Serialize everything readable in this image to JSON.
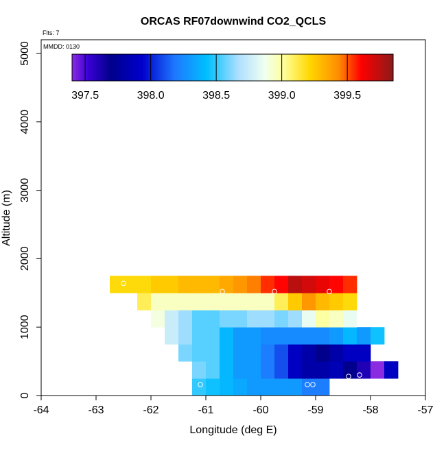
{
  "chart_data": {
    "type": "heatmap",
    "title": "ORCAS RF07downwind CO2_QCLS",
    "top_left_note": "Flts: 7",
    "date_note": "MMDD: 0130",
    "xlabel": "Longitude (deg E)",
    "ylabel": "Altitude (m)",
    "xlim": [
      -64,
      -57
    ],
    "ylim": [
      0,
      5200
    ],
    "x_ticks": [
      -64,
      -63,
      -62,
      -61,
      -60,
      -59,
      -58,
      -57
    ],
    "x_tick_labels": [
      "-64",
      "-63",
      "-62",
      "-61",
      "-60",
      "-59",
      "-58",
      "-57"
    ],
    "y_ticks": [
      0,
      1000,
      2000,
      3000,
      4000,
      5000
    ],
    "y_tick_labels": [
      "0",
      "1000",
      "2000",
      "3000",
      "4000",
      "5000"
    ],
    "colorbar": {
      "min": 397.4,
      "max": 399.85,
      "ticks": [
        397.5,
        398.0,
        398.5,
        399.0,
        399.5
      ],
      "tick_labels": [
        "397.5",
        "398.0",
        "398.5",
        "399.0",
        "399.5"
      ]
    },
    "cell_width_deg": 0.25,
    "cell_height_m": 250,
    "rows": [
      {
        "y_bottom": 0,
        "x_start": -61.25,
        "values": [
          398.5,
          398.45,
          398.4,
          398.35,
          398.3,
          398.3,
          398.3,
          398.3,
          398.2,
          398.2
        ]
      },
      {
        "y_bottom": 250,
        "x_start": -61.25,
        "values": [
          398.6,
          398.55,
          398.4,
          398.3,
          398.3,
          398.2,
          398.1,
          397.9,
          397.8,
          397.8,
          397.85,
          397.7,
          397.6,
          397.4,
          397.9
        ]
      },
      {
        "y_bottom": 500,
        "x_start": -61.5,
        "values": [
          398.6,
          398.55,
          398.55,
          398.4,
          398.3,
          398.3,
          398.2,
          398.1,
          397.9,
          397.8,
          397.7,
          397.8,
          397.9,
          397.9
        ]
      },
      {
        "y_bottom": 750,
        "x_start": -61.75,
        "values": [
          398.75,
          398.65,
          398.55,
          398.55,
          398.4,
          398.3,
          398.3,
          398.25,
          398.25,
          398.25,
          398.25,
          398.25,
          398.3,
          398.4,
          398.3,
          398.45
        ]
      },
      {
        "y_bottom": 1000,
        "x_start": -62.0,
        "values": [
          398.9,
          398.75,
          398.65,
          398.55,
          398.55,
          398.6,
          398.6,
          398.65,
          398.65,
          398.6,
          398.65,
          398.85,
          399.0,
          398.95,
          398.85
        ]
      },
      {
        "y_bottom": 1250,
        "x_start": -62.25,
        "values": [
          399.1,
          398.95,
          398.95,
          398.95,
          398.95,
          398.95,
          398.95,
          398.95,
          398.95,
          398.95,
          399.1,
          399.25,
          399.4,
          399.3,
          399.25,
          399.2
        ]
      },
      {
        "y_bottom": 1500,
        "x_start": -62.75,
        "values": [
          399.2,
          399.2,
          399.2,
          399.25,
          399.25,
          399.3,
          399.3,
          399.3,
          399.35,
          399.4,
          399.45,
          399.55,
          399.6,
          399.75,
          399.7,
          399.65,
          399.6,
          399.55
        ]
      }
    ],
    "flight_points": [
      {
        "x": -62.5,
        "y": 1640
      },
      {
        "x": -60.7,
        "y": 1520
      },
      {
        "x": -59.75,
        "y": 1520
      },
      {
        "x": -58.75,
        "y": 1520
      },
      {
        "x": -61.1,
        "y": 160
      },
      {
        "x": -59.15,
        "y": 160
      },
      {
        "x": -59.05,
        "y": 160
      },
      {
        "x": -58.4,
        "y": 280
      },
      {
        "x": -58.2,
        "y": 300
      }
    ]
  }
}
